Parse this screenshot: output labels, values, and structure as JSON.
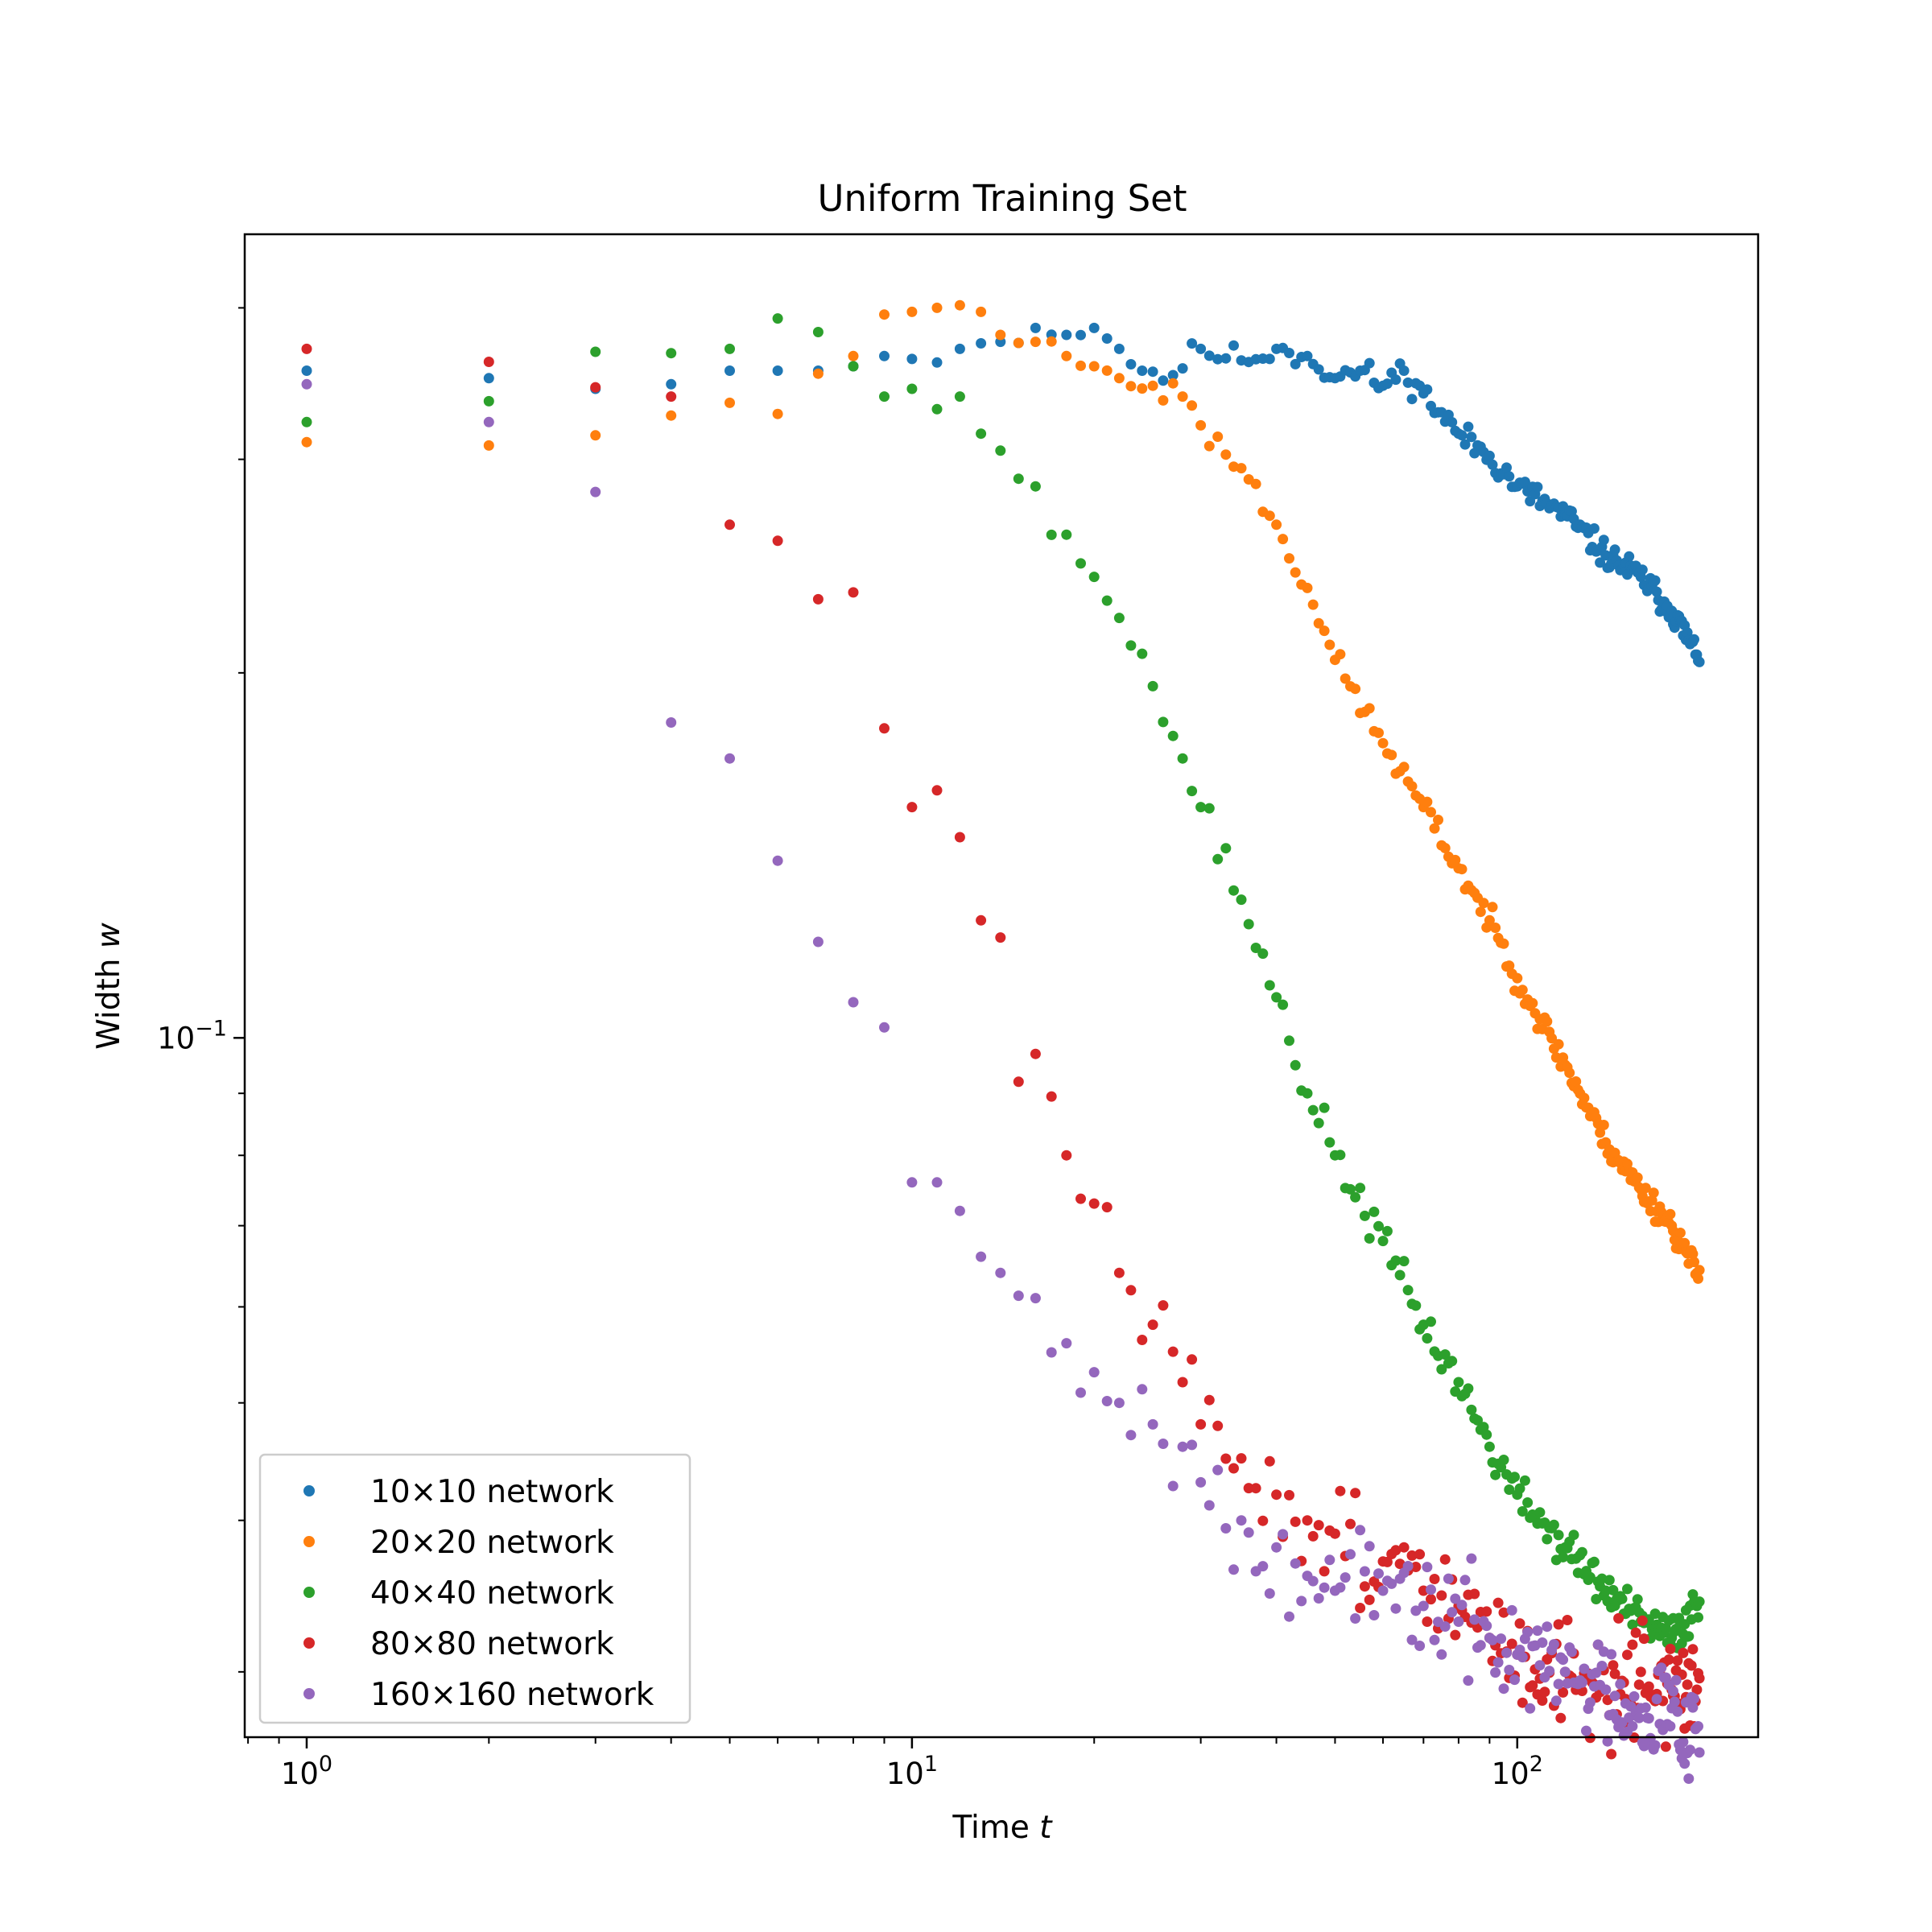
{
  "chart_data": {
    "type": "scatter",
    "title": "Uniform Training Set",
    "xlabel_text": "Time ",
    "xlabel_var": "t",
    "ylabel_text": "Width ",
    "ylabel_var": "w",
    "xscale": "log",
    "yscale": "log",
    "xlim": [
      0.79,
      250
    ],
    "ylim": [
      0.0265,
      0.46
    ],
    "x_ticks": [
      {
        "value": 1,
        "base": "10",
        "exp": "0"
      },
      {
        "value": 10,
        "base": "10",
        "exp": "1"
      },
      {
        "value": 100,
        "base": "10",
        "exp": "2"
      }
    ],
    "y_ticks": [
      {
        "value": 0.1,
        "base": "10",
        "exp": "−1"
      }
    ],
    "grid": false,
    "legend_position": "lower left",
    "series": [
      {
        "name": "10×10 network",
        "color": "#1f77b4",
        "anchors": [
          [
            1,
            0.355
          ],
          [
            2,
            0.35
          ],
          [
            3,
            0.343
          ],
          [
            4,
            0.346
          ],
          [
            5,
            0.355
          ],
          [
            6,
            0.355
          ],
          [
            7,
            0.355
          ],
          [
            8,
            0.358
          ],
          [
            9,
            0.365
          ],
          [
            10,
            0.363
          ],
          [
            12,
            0.37
          ],
          [
            14,
            0.375
          ],
          [
            16,
            0.385
          ],
          [
            18,
            0.38
          ],
          [
            20,
            0.385
          ],
          [
            22,
            0.37
          ],
          [
            24,
            0.355
          ],
          [
            27,
            0.352
          ],
          [
            30,
            0.37
          ],
          [
            35,
            0.362
          ],
          [
            40,
            0.37
          ],
          [
            45,
            0.365
          ],
          [
            50,
            0.35
          ],
          [
            55,
            0.355
          ],
          [
            60,
            0.345
          ],
          [
            65,
            0.355
          ],
          [
            70,
            0.34
          ],
          [
            80,
            0.315
          ],
          [
            90,
            0.302
          ],
          [
            100,
            0.285
          ],
          [
            120,
            0.27
          ],
          [
            140,
            0.25
          ],
          [
            160,
            0.24
          ],
          [
            180,
            0.225
          ],
          [
            198,
            0.207
          ]
        ],
        "n": 200,
        "noise": 0.012,
        "seed": 11
      },
      {
        "name": "20×20 network",
        "color": "#ff7f0e",
        "anchors": [
          [
            1,
            0.31
          ],
          [
            2,
            0.308
          ],
          [
            3,
            0.314
          ],
          [
            4,
            0.326
          ],
          [
            5,
            0.334
          ],
          [
            6,
            0.327
          ],
          [
            7,
            0.353
          ],
          [
            8,
            0.365
          ],
          [
            9,
            0.395
          ],
          [
            10,
            0.397
          ],
          [
            11,
            0.4
          ],
          [
            12,
            0.402
          ],
          [
            13,
            0.397
          ],
          [
            14,
            0.38
          ],
          [
            16,
            0.375
          ],
          [
            18,
            0.365
          ],
          [
            20,
            0.358
          ],
          [
            22,
            0.35
          ],
          [
            25,
            0.345
          ],
          [
            28,
            0.338
          ],
          [
            30,
            0.32
          ],
          [
            35,
            0.295
          ],
          [
            40,
            0.265
          ],
          [
            45,
            0.235
          ],
          [
            50,
            0.205
          ],
          [
            60,
            0.175
          ],
          [
            70,
            0.155
          ],
          [
            80,
            0.138
          ],
          [
            90,
            0.125
          ],
          [
            100,
            0.112
          ],
          [
            120,
            0.095
          ],
          [
            140,
            0.082
          ],
          [
            160,
            0.075
          ],
          [
            180,
            0.07
          ],
          [
            198,
            0.064
          ]
        ],
        "n": 200,
        "noise": 0.012,
        "seed": 23
      },
      {
        "name": "40×40 network",
        "color": "#2ca02c",
        "anchors": [
          [
            1,
            0.322
          ],
          [
            2,
            0.335
          ],
          [
            3,
            0.368
          ],
          [
            4,
            0.367
          ],
          [
            5,
            0.37
          ],
          [
            6,
            0.392
          ],
          [
            7,
            0.382
          ],
          [
            8,
            0.358
          ],
          [
            9,
            0.338
          ],
          [
            10,
            0.343
          ],
          [
            11,
            0.33
          ],
          [
            12,
            0.338
          ],
          [
            13,
            0.315
          ],
          [
            14,
            0.305
          ],
          [
            16,
            0.285
          ],
          [
            18,
            0.26
          ],
          [
            20,
            0.24
          ],
          [
            22,
            0.222
          ],
          [
            25,
            0.195
          ],
          [
            28,
            0.17
          ],
          [
            30,
            0.155
          ],
          [
            35,
            0.13
          ],
          [
            40,
            0.108
          ],
          [
            45,
            0.09
          ],
          [
            50,
            0.08
          ],
          [
            60,
            0.068
          ],
          [
            70,
            0.058
          ],
          [
            80,
            0.052
          ],
          [
            90,
            0.046
          ],
          [
            100,
            0.042
          ],
          [
            120,
            0.038
          ],
          [
            140,
            0.035
          ],
          [
            160,
            0.033
          ],
          [
            180,
            0.032
          ],
          [
            198,
            0.034
          ]
        ],
        "n": 200,
        "noise": 0.018,
        "seed": 37
      },
      {
        "name": "80×80 network",
        "color": "#d62728",
        "anchors": [
          [
            1,
            0.37
          ],
          [
            2,
            0.361
          ],
          [
            3,
            0.344
          ],
          [
            4,
            0.338
          ],
          [
            5,
            0.265
          ],
          [
            6,
            0.257
          ],
          [
            7,
            0.23
          ],
          [
            8,
            0.233
          ],
          [
            9,
            0.18
          ],
          [
            10,
            0.155
          ],
          [
            11,
            0.16
          ],
          [
            13,
            0.125
          ],
          [
            14,
            0.121
          ],
          [
            15,
            0.092
          ],
          [
            16,
            0.097
          ],
          [
            18,
            0.08
          ],
          [
            20,
            0.073
          ],
          [
            22,
            0.064
          ],
          [
            25,
            0.058
          ],
          [
            28,
            0.052
          ],
          [
            30,
            0.048
          ],
          [
            35,
            0.045
          ],
          [
            40,
            0.042
          ],
          [
            45,
            0.04
          ],
          [
            50,
            0.039
          ],
          [
            60,
            0.037
          ],
          [
            70,
            0.035
          ],
          [
            80,
            0.034
          ],
          [
            90,
            0.032
          ],
          [
            100,
            0.031
          ],
          [
            120,
            0.03
          ],
          [
            140,
            0.029
          ],
          [
            160,
            0.03
          ],
          [
            180,
            0.029
          ],
          [
            198,
            0.029
          ]
        ],
        "n": 200,
        "noise": 0.045,
        "seed": 51
      },
      {
        "name": "160×160 network",
        "color": "#9467bd",
        "anchors": [
          [
            1,
            0.346
          ],
          [
            2,
            0.322
          ],
          [
            3,
            0.282
          ],
          [
            4,
            0.182
          ],
          [
            5,
            0.17
          ],
          [
            6,
            0.14
          ],
          [
            7,
            0.12
          ],
          [
            8,
            0.107
          ],
          [
            9,
            0.102
          ],
          [
            10,
            0.076
          ],
          [
            11,
            0.076
          ],
          [
            12,
            0.072
          ],
          [
            13,
            0.066
          ],
          [
            14,
            0.064
          ],
          [
            16,
            0.061
          ],
          [
            18,
            0.056
          ],
          [
            20,
            0.053
          ],
          [
            22,
            0.05
          ],
          [
            25,
            0.048
          ],
          [
            28,
            0.046
          ],
          [
            30,
            0.043
          ],
          [
            35,
            0.04
          ],
          [
            40,
            0.038
          ],
          [
            45,
            0.036
          ],
          [
            50,
            0.035
          ],
          [
            60,
            0.035
          ],
          [
            70,
            0.034
          ],
          [
            80,
            0.033
          ],
          [
            90,
            0.032
          ],
          [
            100,
            0.031
          ],
          [
            120,
            0.03
          ],
          [
            140,
            0.029
          ],
          [
            160,
            0.028
          ],
          [
            180,
            0.028
          ],
          [
            198,
            0.027
          ]
        ],
        "n": 200,
        "noise": 0.045,
        "seed": 67
      }
    ]
  }
}
